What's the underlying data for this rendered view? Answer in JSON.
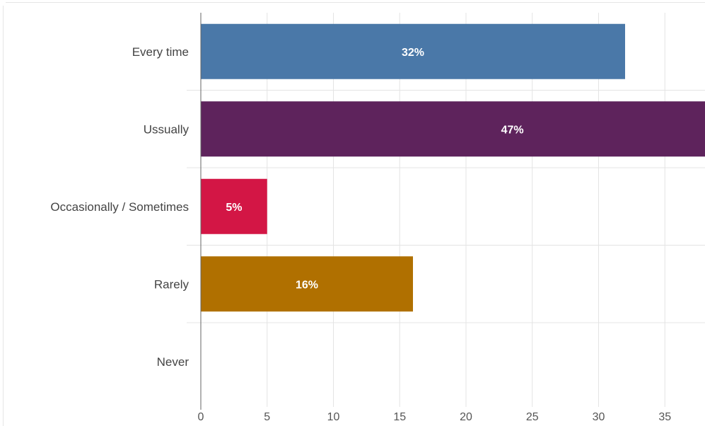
{
  "chart_data": {
    "type": "bar",
    "orientation": "horizontal",
    "categories": [
      "Every time",
      "Ussually",
      "Occasionally / Sometimes",
      "Rarely",
      "Never"
    ],
    "values": [
      32,
      47,
      5,
      16,
      0
    ],
    "data_labels": [
      "32%",
      "47%",
      "5%",
      "16%",
      ""
    ],
    "colors": [
      "#4a78a8",
      "#5e235c",
      "#d31645",
      "#b07000",
      "#888888"
    ],
    "xlim": [
      0,
      38
    ],
    "x_ticks": [
      0,
      5,
      10,
      15,
      20,
      25,
      30,
      35
    ],
    "grid": true,
    "legend": "none",
    "title": "",
    "xlabel": "",
    "ylabel": ""
  }
}
